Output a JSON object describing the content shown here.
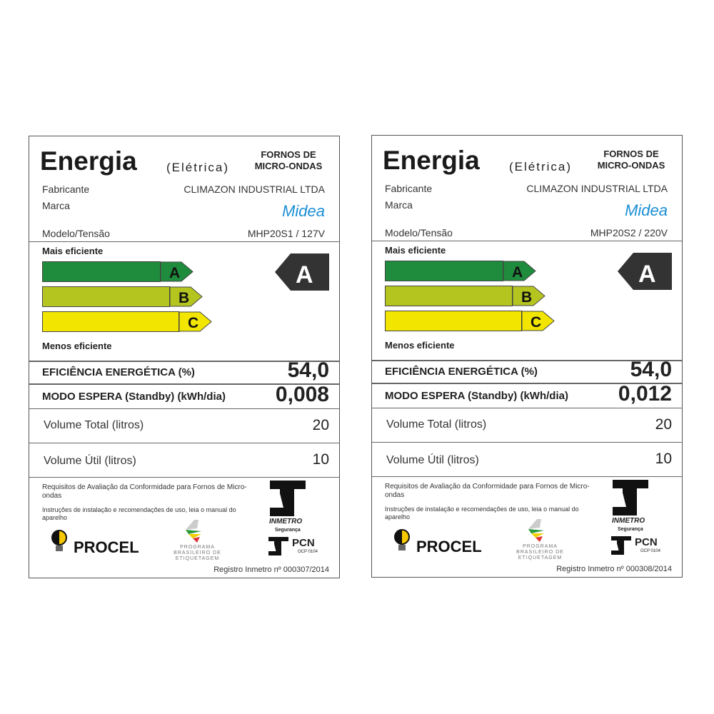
{
  "labels": [
    {
      "title": "Energia",
      "subtitle": "(Elétrica)",
      "category": "FORNOS DE MICRO-ONDAS",
      "fabricante_label": "Fabricante",
      "fabricante": "CLIMAZON INDUSTRIAL LTDA",
      "marca_label": "Marca",
      "marca": "Midea",
      "modelo_label": "Modelo/Tensão",
      "modelo": "MHP20S1 / 127V",
      "mais_eficiente": "Mais eficiente",
      "menos_eficiente": "Menos eficiente",
      "classes": [
        "A",
        "B",
        "C"
      ],
      "rating": "A",
      "eficiencia_label": "EFICIÊNCIA ENERGÉTICA  (%)",
      "eficiencia": "54,0",
      "standby_label": "MODO ESPERA (Standby) (kWh/dia)",
      "standby": "0,008",
      "vol_total_label": "Volume Total  (litros)",
      "vol_total": "20",
      "vol_util_label": "Volume Útil  (litros)",
      "vol_util": "10",
      "requisitos": "Requisitos  de Avaliação da Conformidade para Fornos de Micro-ondas",
      "instrucoes": "Instruções de instalação e recomendações de uso, leia o manual do aparelho",
      "procel": "PROCEL",
      "programa": "PROGRAMA BRASILEIRO DE ETIQUETAGEM",
      "inmetro": "INMETRO",
      "seguranca": "Segurança",
      "pcn": "PCN",
      "ocp": "OCP 0104",
      "registro": "Registro Inmetro nº 000307/2014"
    },
    {
      "title": "Energia",
      "subtitle": "(Elétrica)",
      "category": "FORNOS DE MICRO-ONDAS",
      "fabricante_label": "Fabricante",
      "fabricante": "CLIMAZON INDUSTRIAL LTDA",
      "marca_label": "Marca",
      "marca": "Midea",
      "modelo_label": "Modelo/Tensão",
      "modelo": "MHP20S2 / 220V",
      "mais_eficiente": "Mais eficiente",
      "menos_eficiente": "Menos eficiente",
      "classes": [
        "A",
        "B",
        "C"
      ],
      "rating": "A",
      "eficiencia_label": "EFICIÊNCIA ENERGÉTICA  (%)",
      "eficiencia": "54,0",
      "standby_label": "MODO ESPERA (Standby) (kWh/dia)",
      "standby": "0,012",
      "vol_total_label": "Volume Total  (litros)",
      "vol_total": "20",
      "vol_util_label": "Volume Útil  (litros)",
      "vol_util": "10",
      "requisitos": "Requisitos  de Avaliação da Conformidade para Fornos de Micro-ondas",
      "instrucoes": "Instruções de instalação e recomendações de uso, leia o manual do aparelho",
      "procel": "PROCEL",
      "programa": "PROGRAMA BRASILEIRO DE ETIQUETAGEM",
      "inmetro": "INMETRO",
      "seguranca": "Segurança",
      "pcn": "PCN",
      "ocp": "OCP 0104",
      "registro": "Registro Inmetro nº 000308/2014"
    }
  ],
  "colors": {
    "A": "#1e8c3c",
    "B": "#b5c520",
    "C": "#f2e600",
    "rating_bg": "#333333",
    "midea": "#1a8fd6"
  }
}
